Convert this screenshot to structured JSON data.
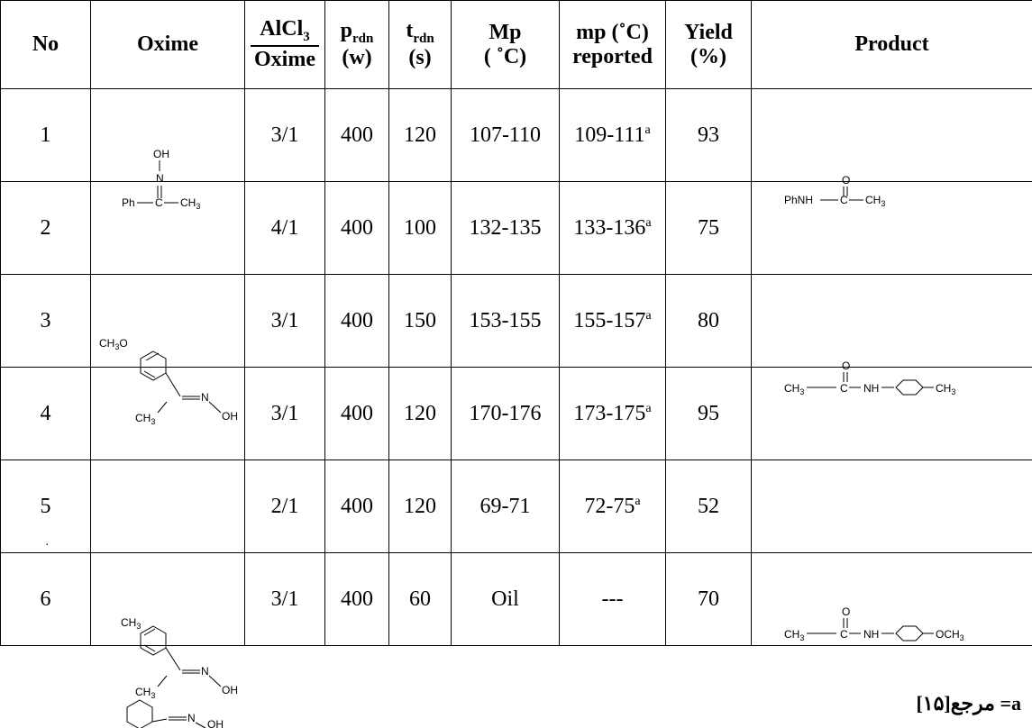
{
  "headers": {
    "no": "No",
    "oxime": "Oxime",
    "ratio_num": "AlCl3",
    "ratio_den": "Oxime",
    "p_main": "p",
    "p_sub": "rdn",
    "p_unit": "(w)",
    "t_main": "t",
    "t_sub": "rdn",
    "t_unit": "(s)",
    "mp": "Mp",
    "mp_unit": "( ˚C)",
    "mp_reported": "mp (˚C)",
    "mp_reported2": "reported",
    "yield": "Yield",
    "yield_unit": "(%)",
    "product": "Product"
  },
  "rows": [
    {
      "no": "1",
      "ratio": "3/1",
      "p": "400",
      "t": "120",
      "mp": "107-110",
      "reported": "109-111",
      "sup": "a",
      "yield": "93"
    },
    {
      "no": "2",
      "ratio": "4/1",
      "p": "400",
      "t": "100",
      "mp": "132-135",
      "reported": "133-136",
      "sup": "a",
      "yield": "75"
    },
    {
      "no": "3",
      "ratio": "3/1",
      "p": "400",
      "t": "150",
      "mp": "153-155",
      "reported": "155-157",
      "sup": "a",
      "yield": "80"
    },
    {
      "no": "4",
      "ratio": "3/1",
      "p": "400",
      "t": "120",
      "mp": "170-176",
      "reported": "173-175",
      "sup": "a",
      "yield": "95"
    },
    {
      "no": "5",
      "ratio": "2/1",
      "p": "400",
      "t": "120",
      "mp": "69-71",
      "reported": "72-75",
      "sup": "a",
      "yield": "52"
    },
    {
      "no": "6",
      "ratio": "3/1",
      "p": "400",
      "t": "60",
      "mp": "Oil",
      "reported": "---",
      "sup": "",
      "yield": "70"
    }
  ],
  "row5_dot": ".",
  "chem": {
    "oh": "OH",
    "n": "N",
    "ph": "Ph",
    "c": "C",
    "ch3": "CH3",
    "ch3o": "CH3O",
    "c_eq_n": "C",
    "phnh": "PhNH",
    "o": "O",
    "nh": "NH",
    "och3": "OCH3"
  },
  "footnote": "a= مرجع[۱۵]",
  "caption": "                "
}
